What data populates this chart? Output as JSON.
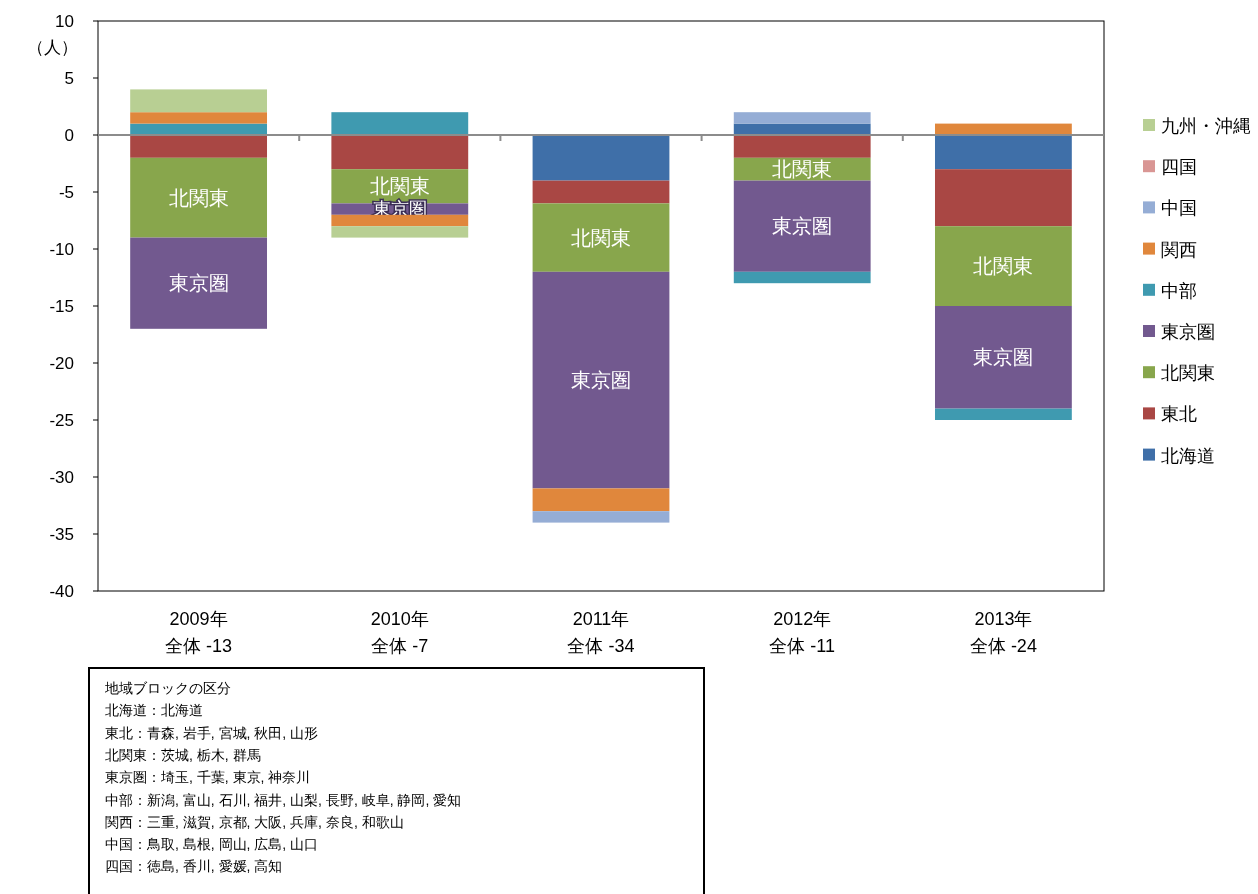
{
  "chart_data": {
    "type": "bar",
    "stacked": true,
    "ylabel": "（人）",
    "ylim": [
      -40,
      10
    ],
    "yticks": [
      -40,
      -35,
      -30,
      -25,
      -20,
      -15,
      -10,
      -5,
      0,
      5,
      10
    ],
    "legend": "right",
    "categories": [
      "2009年",
      "2010年",
      "2011年",
      "2012年",
      "2013年"
    ],
    "ref_lines": [
      {
        "axis": "y",
        "value": 0,
        "color": "#8c8c8c"
      }
    ],
    "series": [
      {
        "name": "北海道",
        "color": "#3f6fa8",
        "values": [
          0,
          0,
          -4,
          1,
          -3
        ]
      },
      {
        "name": "東北",
        "color": "#a94744",
        "values": [
          -2,
          -3,
          -2,
          -2,
          -5
        ]
      },
      {
        "name": "北関東",
        "color": "#88a64c",
        "values": [
          -7,
          -3,
          -6,
          -2,
          -7
        ],
        "value_labels": [
          "北関東",
          "北関東",
          "北関東",
          "北関東",
          "北関東"
        ]
      },
      {
        "name": "東京圏",
        "color": "#72598f",
        "values": [
          -8,
          -1,
          -19,
          -8,
          -9
        ],
        "value_labels": [
          "東京圏",
          "東京圏",
          "東京圏",
          "東京圏",
          "東京圏"
        ]
      },
      {
        "name": "中部",
        "color": "#3f9ab0",
        "values": [
          1,
          2,
          0,
          -1,
          -1
        ]
      },
      {
        "name": "関西",
        "color": "#e0873c",
        "values": [
          1,
          -1,
          -2,
          0,
          1
        ]
      },
      {
        "name": "中国",
        "color": "#95add5",
        "values": [
          0,
          0,
          -1,
          1,
          0
        ]
      },
      {
        "name": "四国",
        "color": "#d99694",
        "values": [
          0,
          0,
          0,
          0,
          0
        ]
      },
      {
        "name": "九州・沖縄",
        "color": "#b8cf93",
        "values": [
          2,
          -1,
          0,
          0,
          0
        ]
      }
    ],
    "annotations": [
      "全体  -13",
      "全体  -7",
      "全体  -34",
      "全体  -11",
      "全体  -24",
      "地域ブロックの区分",
      "北海道：北海道",
      "東北：青森, 岩手, 宮城, 秋田, 山形",
      "北関東：茨城, 栃木, 群馬",
      "東京圏：埼玉, 千葉, 東京, 神奈川",
      "中部：新潟, 富山, 石川, 福井, 山梨, 長野, 岐阜, 静岡, 愛知",
      "関西：三重, 滋賀, 京都, 大阪, 兵庫, 奈良, 和歌山",
      "中国：鳥取, 島根, 岡山, 広島, 山口",
      "四国：徳島, 香川, 愛媛, 高知"
    ]
  }
}
